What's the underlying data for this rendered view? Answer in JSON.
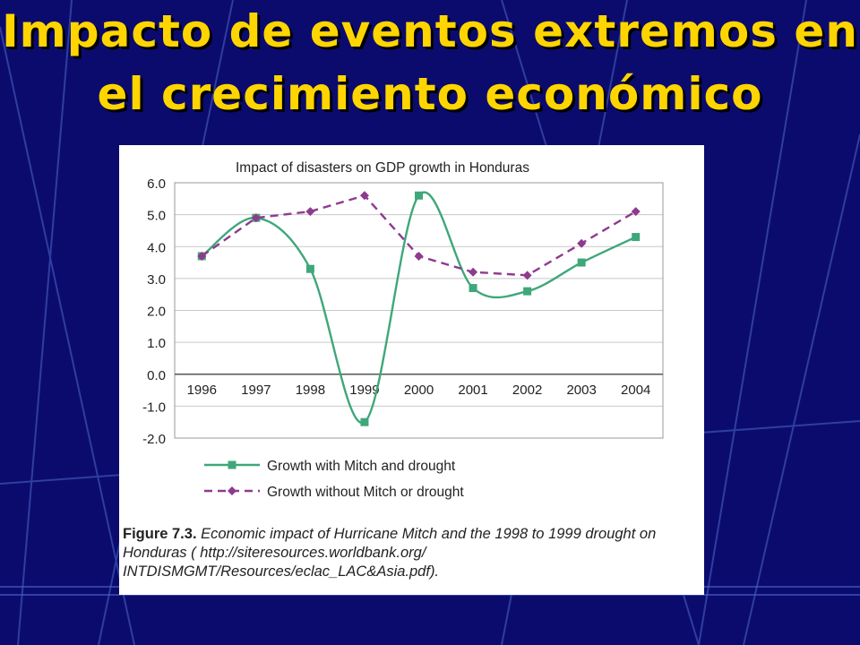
{
  "slide": {
    "title": "Impacto de eventos extremos en el crecimiento económico"
  },
  "figure": {
    "caption_label": "Figure 7.3.",
    "caption_text": "Economic impact of Hurricane Mitch and the 1998 to 1999 drought on Honduras ( http://siteresources.worldbank.org/ INTDISMGMT/Resources/eclac_LAC&Asia.pdf)."
  },
  "colors": {
    "background": "#0B0B6E",
    "title": "#FFD500",
    "series_with": "#3FA77A",
    "series_without": "#8E3A8E"
  },
  "chart_data": {
    "type": "line",
    "title": "Impact of disasters on GDP growth in Honduras",
    "xlabel": "",
    "ylabel": "",
    "categories": [
      "1996",
      "1997",
      "1998",
      "1999",
      "2000",
      "2001",
      "2002",
      "2003",
      "2004"
    ],
    "ylim": [
      -2.0,
      6.0
    ],
    "yticks": [
      "6.0",
      "5.0",
      "4.0",
      "3.0",
      "2.0",
      "1.0",
      "0.0",
      "-1.0",
      "-2.0"
    ],
    "grid": "horizontal",
    "legend_position": "bottom-left",
    "series": [
      {
        "name": "Growth with Mitch and drought",
        "values": [
          3.7,
          4.9,
          3.3,
          -1.5,
          5.6,
          2.7,
          2.6,
          3.5,
          4.3
        ],
        "style": "solid",
        "marker": "square"
      },
      {
        "name": "Growth without Mitch or drought",
        "values": [
          3.7,
          4.9,
          5.1,
          5.6,
          3.7,
          3.2,
          3.1,
          4.1,
          5.1
        ],
        "style": "dashed",
        "marker": "diamond"
      }
    ]
  }
}
